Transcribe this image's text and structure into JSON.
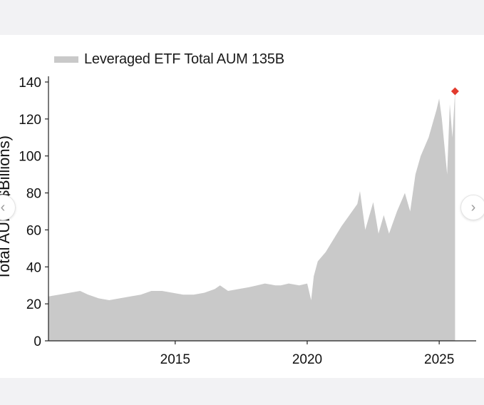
{
  "legend": {
    "label": "Leveraged ETF Total AUM 135B",
    "color": "#c9c9c9"
  },
  "navigation": {
    "prev_icon": "chevron-left-icon",
    "next_icon": "chevron-right-icon"
  },
  "chart_data": {
    "type": "area",
    "title": "",
    "xlabel": "",
    "ylabel": "Total AUM ($Billions)",
    "ylim": [
      0,
      140
    ],
    "xlim": [
      2010.2,
      2026.4
    ],
    "yticks": [
      0,
      20,
      40,
      60,
      80,
      100,
      120,
      140
    ],
    "xticks": [
      2015,
      2020,
      2025
    ],
    "grid": false,
    "legend_position": "top-left",
    "series": [
      {
        "name": "Leveraged ETF Total AUM 135B",
        "color": "#c9c9c9",
        "x": [
          2010.2,
          2010.6,
          2011.0,
          2011.4,
          2011.7,
          2012.1,
          2012.5,
          2012.9,
          2013.3,
          2013.7,
          2014.1,
          2014.5,
          2014.9,
          2015.3,
          2015.7,
          2016.1,
          2016.5,
          2016.7,
          2017.0,
          2017.4,
          2017.8,
          2018.1,
          2018.4,
          2018.8,
          2019.0,
          2019.3,
          2019.7,
          2020.0,
          2020.15,
          2020.25,
          2020.4,
          2020.7,
          2021.0,
          2021.3,
          2021.6,
          2021.9,
          2022.0,
          2022.2,
          2022.5,
          2022.7,
          2022.9,
          2023.1,
          2023.4,
          2023.7,
          2023.9,
          2024.1,
          2024.3,
          2024.6,
          2024.9,
          2025.0,
          2025.1,
          2025.3,
          2025.4,
          2025.5,
          2025.6
        ],
        "values": [
          24,
          25,
          26,
          27,
          25,
          23,
          22,
          23,
          24,
          25,
          27,
          27,
          26,
          25,
          25,
          26,
          28,
          30,
          27,
          28,
          29,
          30,
          31,
          30,
          30,
          31,
          30,
          31,
          22,
          35,
          43,
          48,
          55,
          62,
          68,
          74,
          81,
          60,
          75,
          58,
          68,
          58,
          70,
          80,
          70,
          90,
          100,
          110,
          125,
          131,
          120,
          90,
          128,
          110,
          135
        ]
      }
    ],
    "annotations": [
      {
        "x": 2025.6,
        "y": 135,
        "marker": "diamond",
        "color": "#e23b2e"
      }
    ]
  }
}
